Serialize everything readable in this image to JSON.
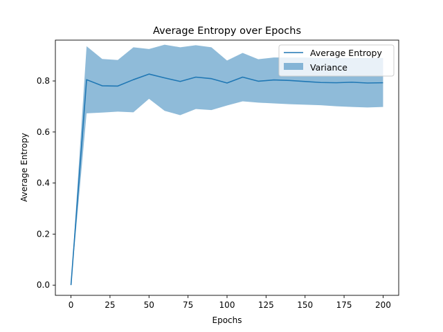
{
  "chart_data": {
    "type": "line",
    "title": "Average Entropy over Epochs",
    "xlabel": "Epochs",
    "ylabel": "Average Entropy",
    "xlim": [
      -10,
      210
    ],
    "ylim": [
      -0.04,
      0.96
    ],
    "xticks": [
      0,
      25,
      50,
      75,
      100,
      125,
      150,
      175,
      200
    ],
    "yticks": [
      0.0,
      0.2,
      0.4,
      0.6,
      0.8
    ],
    "xtick_labels": [
      "0",
      "25",
      "50",
      "75",
      "100",
      "125",
      "150",
      "175",
      "200"
    ],
    "ytick_labels": [
      "0.0",
      "0.2",
      "0.4",
      "0.6",
      "0.8"
    ],
    "grid": false,
    "legend_position": "upper right",
    "x": [
      0,
      10,
      20,
      30,
      40,
      50,
      60,
      70,
      80,
      90,
      100,
      110,
      120,
      130,
      140,
      150,
      160,
      170,
      180,
      190,
      200
    ],
    "series": [
      {
        "name": "Average Entropy",
        "kind": "line",
        "color": "#1f77b4",
        "values": [
          0.0,
          0.805,
          0.781,
          0.78,
          0.805,
          0.827,
          0.812,
          0.798,
          0.815,
          0.809,
          0.792,
          0.815,
          0.799,
          0.804,
          0.802,
          0.798,
          0.794,
          0.793,
          0.795,
          0.792,
          0.793
        ]
      },
      {
        "name": "Variance",
        "kind": "band",
        "color": "#1f77b4",
        "opacity": 0.5,
        "upper": [
          0.0,
          0.936,
          0.886,
          0.882,
          0.932,
          0.925,
          0.942,
          0.932,
          0.94,
          0.932,
          0.88,
          0.91,
          0.885,
          0.892,
          0.892,
          0.892,
          0.89,
          0.89,
          0.89,
          0.89,
          0.89
        ],
        "lower": [
          0.0,
          0.673,
          0.676,
          0.68,
          0.677,
          0.73,
          0.683,
          0.666,
          0.69,
          0.686,
          0.704,
          0.72,
          0.715,
          0.712,
          0.709,
          0.707,
          0.705,
          0.701,
          0.698,
          0.696,
          0.698
        ]
      }
    ]
  }
}
